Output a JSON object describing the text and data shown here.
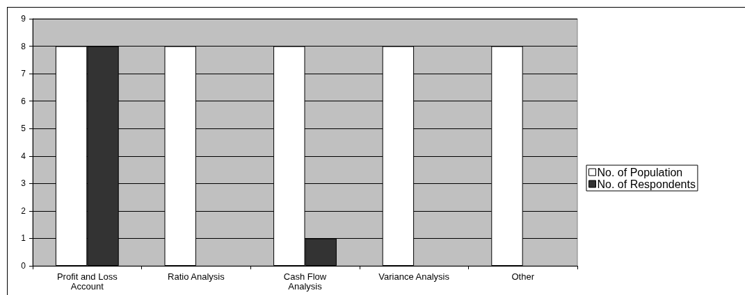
{
  "chart_data": {
    "type": "bar",
    "categories": [
      "Profit and Loss Account",
      "Ratio Analysis",
      "Cash Flow Analysis",
      "Variance Analysis",
      "Other"
    ],
    "series": [
      {
        "name": "No. of Population",
        "color": "#ffffff",
        "values": [
          8,
          8,
          8,
          8,
          8
        ]
      },
      {
        "name": "No. of Respondents",
        "color": "#333333",
        "values": [
          8,
          null,
          1,
          null,
          null
        ]
      }
    ],
    "ylim": [
      0,
      9
    ],
    "yticks": [
      0,
      1,
      2,
      3,
      4,
      5,
      6,
      7,
      8,
      9
    ],
    "grid": "y",
    "legend": "right"
  }
}
